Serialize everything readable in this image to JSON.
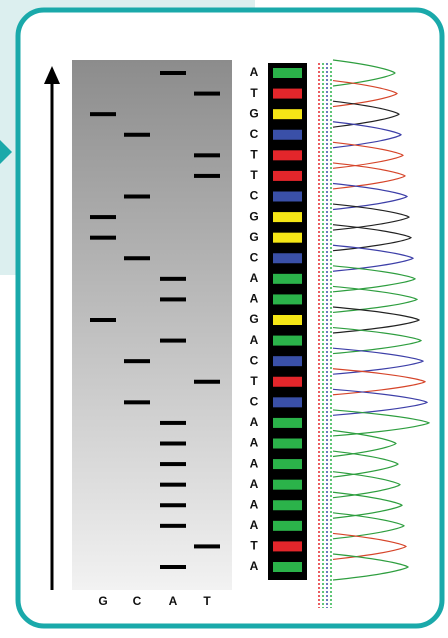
{
  "sequence": [
    "A",
    "T",
    "G",
    "C",
    "T",
    "T",
    "C",
    "G",
    "G",
    "C",
    "A",
    "A",
    "G",
    "A",
    "C",
    "T",
    "C",
    "A",
    "A",
    "A",
    "A",
    "A",
    "A",
    "T",
    "A"
  ],
  "lane_labels": [
    "G",
    "C",
    "A",
    "T"
  ]
}
